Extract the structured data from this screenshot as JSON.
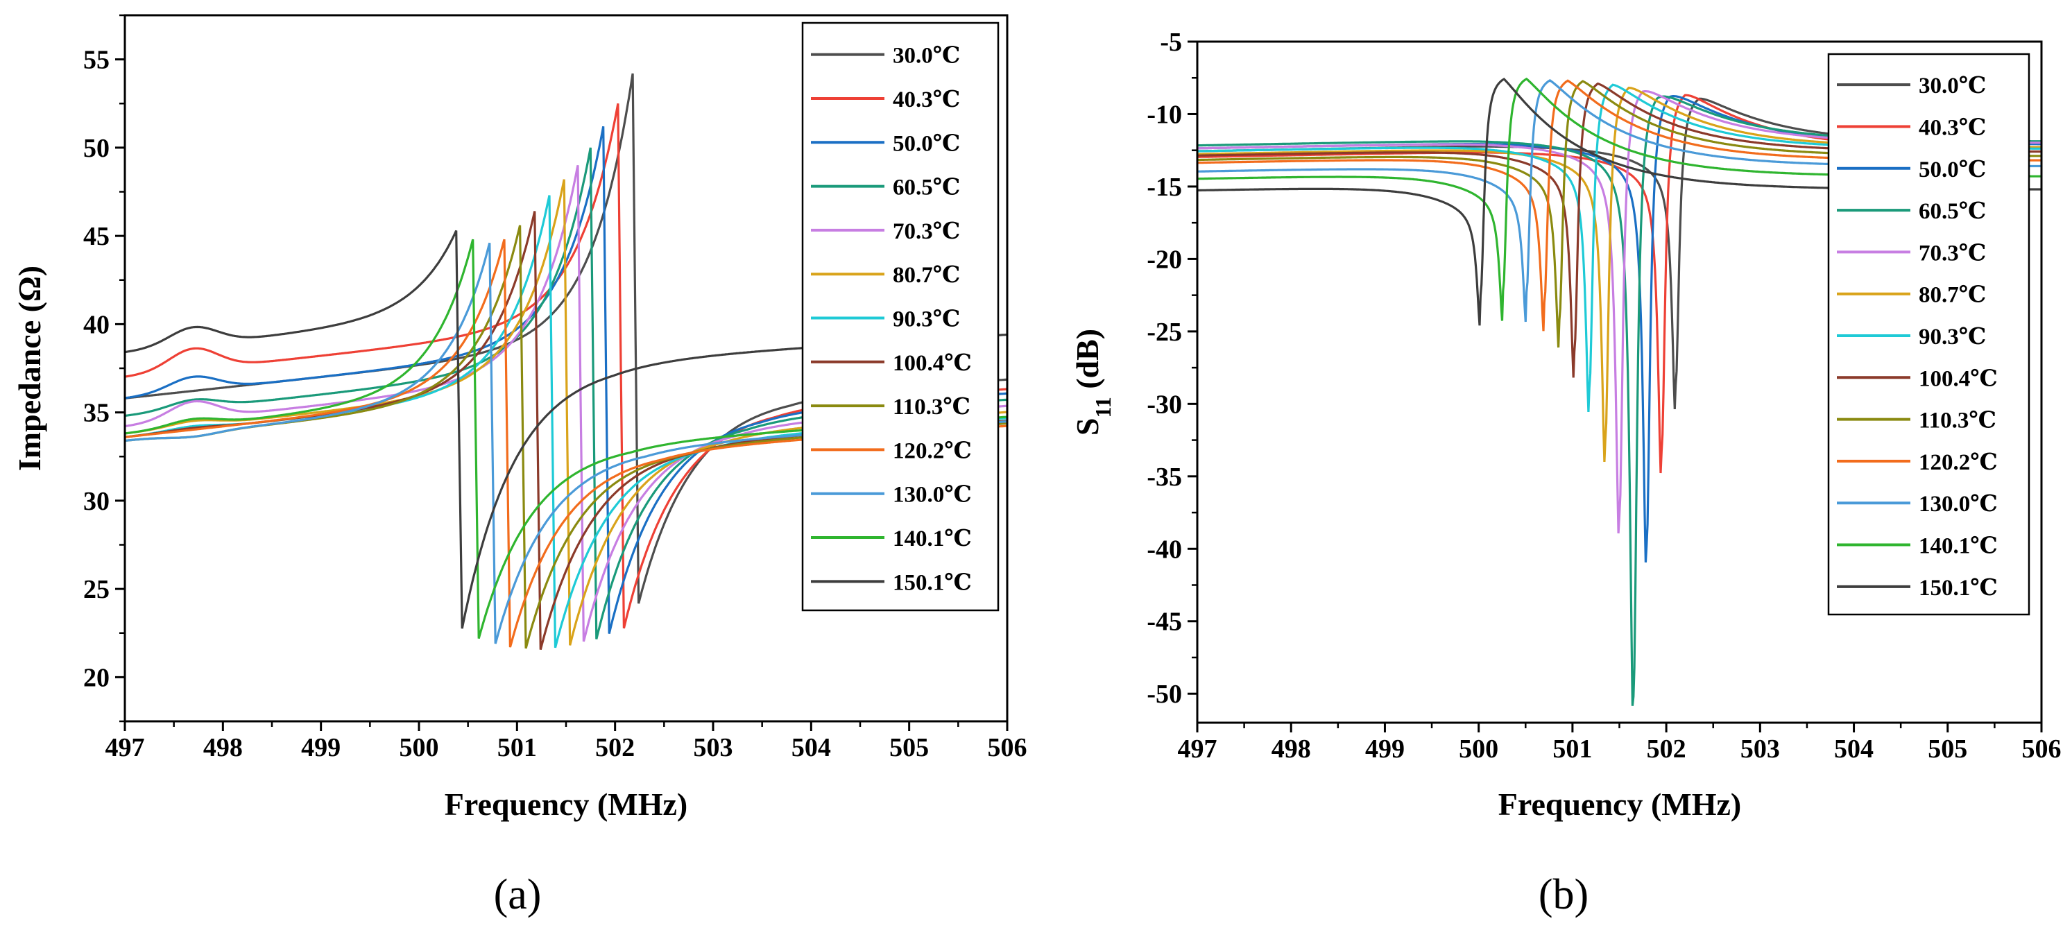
{
  "chart_data": [
    {
      "panel": "(a)",
      "type": "line",
      "title": "",
      "xlabel": "Frequency (MHz)",
      "ylabel": "Impedance (Ω)",
      "xlim": [
        497,
        506
      ],
      "ylim": [
        17.5,
        57.5
      ],
      "xticks": [
        497,
        498,
        499,
        500,
        501,
        502,
        503,
        504,
        505,
        506
      ],
      "yticks": [
        20,
        25,
        30,
        35,
        40,
        45,
        50,
        55
      ],
      "legend_position": "top-right",
      "series": [
        {
          "name": "30.0℃",
          "color": "#4d4d4d",
          "f0": 502.18,
          "peak": 54.2,
          "dip": 22.8,
          "left": 35.8,
          "right": 36.1,
          "offset_a": 0.0,
          "offset_b": 0.0
        },
        {
          "name": "40.3℃",
          "color": "#ee4035",
          "f0": 502.03,
          "peak": 52.5,
          "dip": 21.3,
          "left": 37.0,
          "right": 35.5,
          "offset_a": 1.2,
          "offset_b": -0.4
        },
        {
          "name": "50.0℃",
          "color": "#1a6fc4",
          "f0": 501.88,
          "peak": 51.2,
          "dip": 21.0,
          "left": 35.8,
          "right": 35.2,
          "offset_a": 0.8,
          "offset_b": -0.6
        },
        {
          "name": "60.5℃",
          "color": "#1a9a7a",
          "f0": 501.75,
          "peak": 50.0,
          "dip": 20.7,
          "left": 34.8,
          "right": 34.8,
          "offset_a": 0.5,
          "offset_b": -0.8
        },
        {
          "name": "70.3℃",
          "color": "#c77ee2",
          "f0": 501.62,
          "peak": 49.0,
          "dip": 20.6,
          "left": 34.2,
          "right": 34.4,
          "offset_a": 1.0,
          "offset_b": -1.0
        },
        {
          "name": "80.7℃",
          "color": "#d9a31a",
          "f0": 501.48,
          "peak": 48.2,
          "dip": 20.4,
          "left": 33.8,
          "right": 34.0,
          "offset_a": 0.3,
          "offset_b": -1.2
        },
        {
          "name": "90.3℃",
          "color": "#1ecad6",
          "f0": 501.33,
          "peak": 47.3,
          "dip": 20.3,
          "left": 33.6,
          "right": 33.6,
          "offset_a": 0.2,
          "offset_b": -1.3
        },
        {
          "name": "100.4℃",
          "color": "#8b3a2a",
          "f0": 501.18,
          "peak": 46.4,
          "dip": 20.2,
          "left": 33.6,
          "right": 33.4,
          "offset_a": 0.1,
          "offset_b": -1.4
        },
        {
          "name": "110.3℃",
          "color": "#8a8a10",
          "f0": 501.03,
          "peak": 45.6,
          "dip": 20.3,
          "left": 33.4,
          "right": 33.2,
          "offset_a": -0.2,
          "offset_b": -1.5
        },
        {
          "name": "120.2℃",
          "color": "#f26c1c",
          "f0": 500.87,
          "peak": 44.8,
          "dip": 20.4,
          "left": 33.6,
          "right": 33.0,
          "offset_a": 0.0,
          "offset_b": -1.6
        },
        {
          "name": "130.0℃",
          "color": "#4a9ad8",
          "f0": 500.72,
          "peak": 44.6,
          "dip": 20.6,
          "left": 33.4,
          "right": 33.2,
          "offset_a": -0.2,
          "offset_b": -1.2
        },
        {
          "name": "140.1℃",
          "color": "#2fb52f",
          "f0": 500.55,
          "peak": 44.8,
          "dip": 20.9,
          "left": 33.8,
          "right": 33.4,
          "offset_a": 0.4,
          "offset_b": -1.0
        },
        {
          "name": "150.1℃",
          "color": "#3d3d3d",
          "f0": 500.38,
          "peak": 45.3,
          "dip": 21.0,
          "left": 38.4,
          "right": 38.0,
          "offset_a": 1.0,
          "offset_b": 0.4
        }
      ]
    },
    {
      "panel": "(b)",
      "type": "line",
      "title": "",
      "xlabel": "Frequency (MHz)",
      "ylabel": "S11 (dB)",
      "ylabel_main": "S",
      "ylabel_sub": "11",
      "ylabel_rest": " (dB)",
      "xlim": [
        497,
        506
      ],
      "ylim": [
        -52.0,
        -5.0
      ],
      "xticks": [
        497,
        498,
        499,
        500,
        501,
        502,
        503,
        504,
        505,
        506
      ],
      "yticks": [
        -5,
        -10,
        -15,
        -20,
        -25,
        -30,
        -35,
        -40,
        -45,
        -50
      ],
      "legend_position": "top-right",
      "series": [
        {
          "name": "30.0℃",
          "color": "#4d4d4d",
          "f0": 502.1,
          "dip": -28.7,
          "peak": -8.3,
          "left": -12.2,
          "right": -12.0
        },
        {
          "name": "40.3℃",
          "color": "#ee4035",
          "f0": 501.95,
          "dip": -33.3,
          "peak": -7.9,
          "left": -12.6,
          "right": -12.4
        },
        {
          "name": "50.0℃",
          "color": "#1a6fc4",
          "f0": 501.79,
          "dip": -39.8,
          "peak": -7.8,
          "left": -12.0,
          "right": -12.1
        },
        {
          "name": "60.5℃",
          "color": "#1a9a7a",
          "f0": 501.65,
          "dip": -50.2,
          "peak": -7.6,
          "left": -11.8,
          "right": -11.9
        },
        {
          "name": "70.3℃",
          "color": "#c77ee2",
          "f0": 501.5,
          "dip": -37.7,
          "peak": -7.5,
          "left": -12.0,
          "right": -12.0
        },
        {
          "name": "80.7℃",
          "color": "#d9a31a",
          "f0": 501.35,
          "dip": -32.5,
          "peak": -7.4,
          "left": -12.4,
          "right": -12.3
        },
        {
          "name": "90.3℃",
          "color": "#1ecad6",
          "f0": 501.18,
          "dip": -28.9,
          "peak": -7.3,
          "left": -12.2,
          "right": -12.4
        },
        {
          "name": "100.4℃",
          "color": "#8b3a2a",
          "f0": 501.02,
          "dip": -26.4,
          "peak": -7.3,
          "left": -12.5,
          "right": -12.6
        },
        {
          "name": "110.3℃",
          "color": "#8a8a10",
          "f0": 500.86,
          "dip": -24.2,
          "peak": -7.2,
          "left": -12.8,
          "right": -12.9
        },
        {
          "name": "120.2℃",
          "color": "#f26c1c",
          "f0": 500.7,
          "dip": -23.0,
          "peak": -7.2,
          "left": -13.0,
          "right": -13.2
        },
        {
          "name": "130.0℃",
          "color": "#4a9ad8",
          "f0": 500.51,
          "dip": -22.3,
          "peak": -7.2,
          "left": -13.6,
          "right": -13.6
        },
        {
          "name": "140.1℃",
          "color": "#2fb52f",
          "f0": 500.26,
          "dip": -22.2,
          "peak": -7.1,
          "left": -14.1,
          "right": -14.3
        },
        {
          "name": "150.1℃",
          "color": "#3d3d3d",
          "f0": 500.02,
          "dip": -22.5,
          "peak": -7.1,
          "left": -14.9,
          "right": -15.2
        }
      ]
    }
  ]
}
